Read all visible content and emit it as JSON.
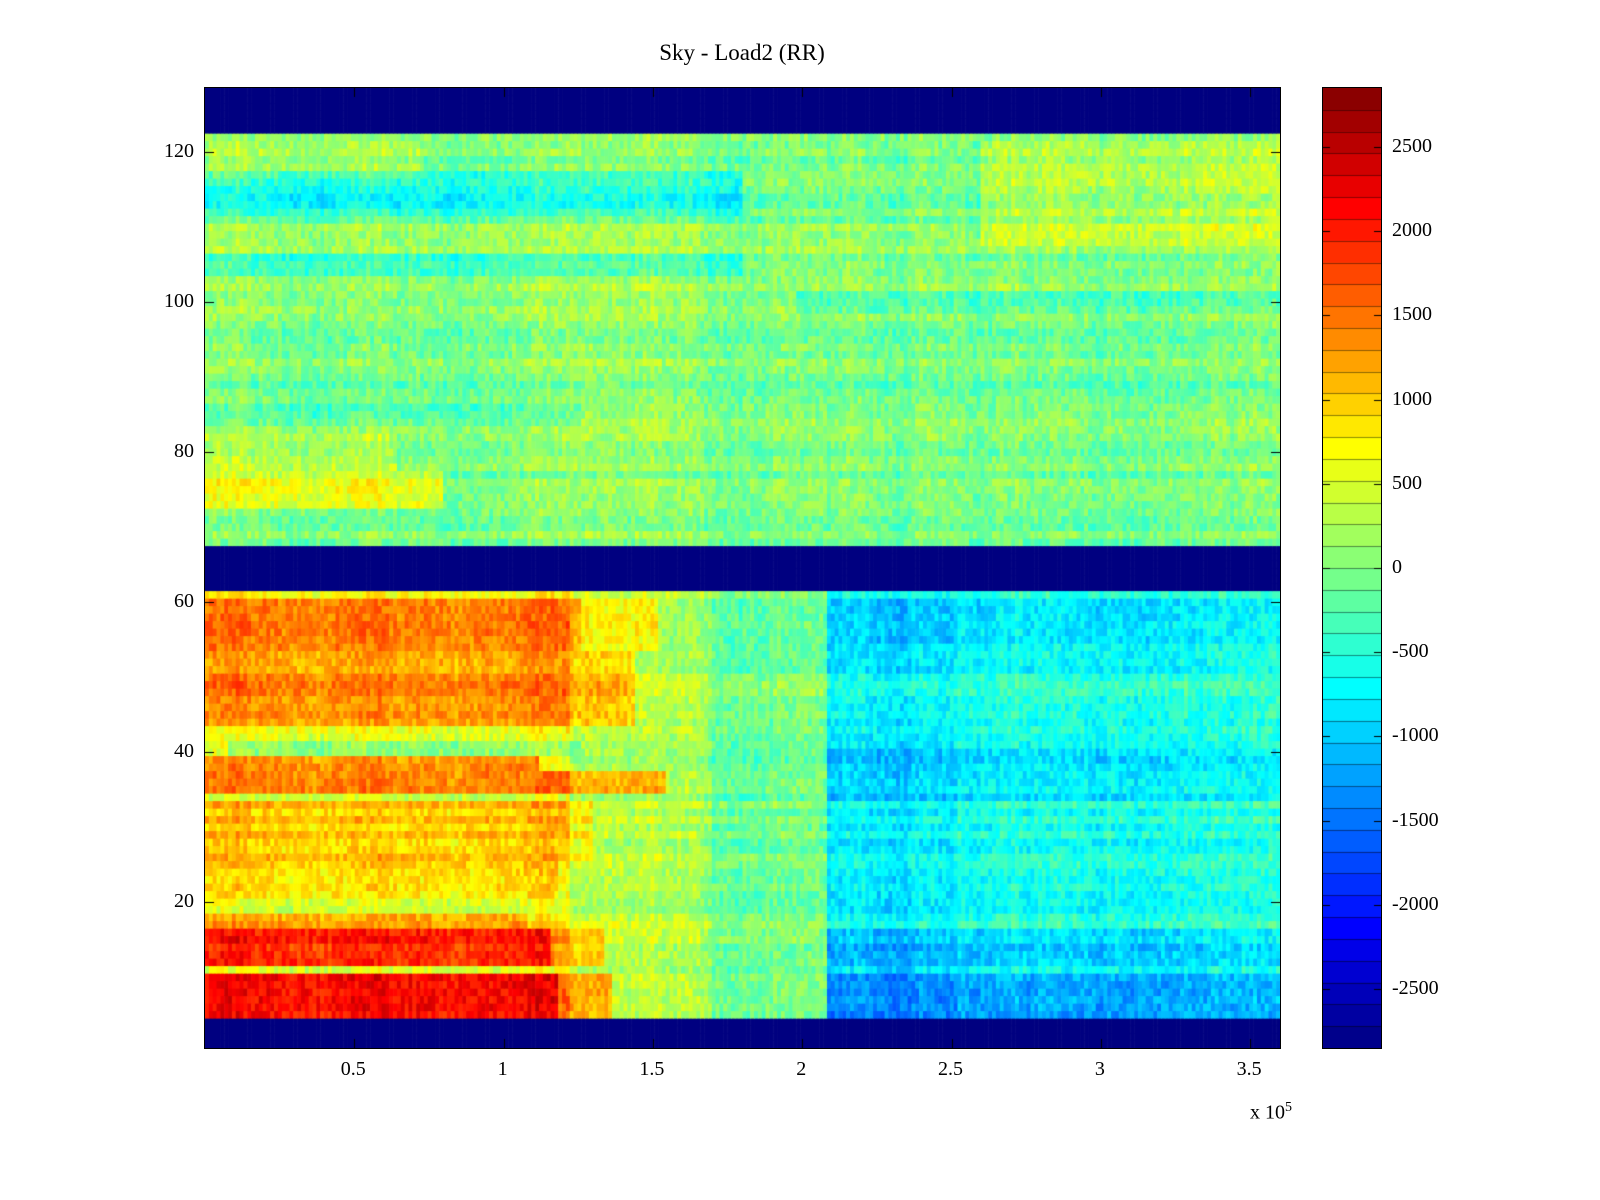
{
  "chart_data": {
    "type": "heatmap",
    "title": "Sky - Load2 (RR)",
    "colormap": "jet",
    "x_axis": {
      "min": 0,
      "max": 360000,
      "ticks": [
        {
          "value": 50000,
          "label": "0.5"
        },
        {
          "value": 100000,
          "label": "1"
        },
        {
          "value": 150000,
          "label": "1.5"
        },
        {
          "value": 200000,
          "label": "2"
        },
        {
          "value": 250000,
          "label": "2.5"
        },
        {
          "value": 300000,
          "label": "3"
        },
        {
          "value": 350000,
          "label": "3.5"
        }
      ],
      "exponent_label": {
        "mantissa": "x 10",
        "exp": "5"
      }
    },
    "y_axis": {
      "min": 0.5,
      "max": 128.5,
      "ticks": [
        {
          "value": 20,
          "label": "20"
        },
        {
          "value": 40,
          "label": "40"
        },
        {
          "value": 60,
          "label": "60"
        },
        {
          "value": 80,
          "label": "80"
        },
        {
          "value": 100,
          "label": "100"
        },
        {
          "value": 120,
          "label": "120"
        }
      ]
    },
    "colorbar": {
      "min": -2850,
      "max": 2850,
      "levels": 44,
      "ticks": [
        {
          "value": 2500,
          "label": "2500"
        },
        {
          "value": 2000,
          "label": "2000"
        },
        {
          "value": 1500,
          "label": "1500"
        },
        {
          "value": 1000,
          "label": "1000"
        },
        {
          "value": 500,
          "label": "500"
        },
        {
          "value": 0,
          "label": "0"
        },
        {
          "value": -500,
          "label": "-500"
        },
        {
          "value": -1000,
          "label": "-1000"
        },
        {
          "value": -1500,
          "label": "-1500"
        },
        {
          "value": -2000,
          "label": "-2000"
        },
        {
          "value": -2500,
          "label": "-2500"
        }
      ]
    },
    "grid": {
      "rows": 128,
      "cols": 280
    },
    "noise": {
      "seed": 1337,
      "base": 0,
      "cell_amp": 270,
      "row_amp": 200,
      "col_amp": 250
    },
    "regions": [
      {
        "name": "bottom-blank-band",
        "rows": [
          1,
          4
        ],
        "x": [
          0,
          1
        ],
        "solid": true,
        "value": -2850
      },
      {
        "name": "middle-blank-band",
        "rows": [
          62,
          67
        ],
        "x": [
          0,
          1
        ],
        "solid": true,
        "value": -2850
      },
      {
        "name": "top-blank-band",
        "rows": [
          123,
          128
        ],
        "x": [
          0,
          1
        ],
        "solid": true,
        "value": -2850
      },
      {
        "rows": [
          5,
          61
        ],
        "x": [
          0,
          0.34
        ],
        "dv": 650
      },
      {
        "rows": [
          5,
          61
        ],
        "x": [
          0.34,
          0.47
        ],
        "dv": 250
      },
      {
        "rows": [
          5,
          61
        ],
        "x": [
          0.58,
          1
        ],
        "dv": -480
      },
      {
        "rows": [
          5,
          61
        ],
        "x": [
          0.58,
          0.7
        ],
        "dv": -220
      },
      {
        "rows": [
          5,
          10
        ],
        "x": [
          0,
          0.33
        ],
        "dv": 1500
      },
      {
        "rows": [
          5,
          10
        ],
        "x": [
          0.33,
          0.38
        ],
        "dv": 800
      },
      {
        "rows": [
          12,
          16
        ],
        "x": [
          0,
          0.32
        ],
        "dv": 1350
      },
      {
        "rows": [
          12,
          16
        ],
        "x": [
          0.32,
          0.37
        ],
        "dv": 650
      },
      {
        "rows": [
          17,
          18
        ],
        "x": [
          0,
          0.3
        ],
        "dv": 500
      },
      {
        "rows": [
          21,
          25
        ],
        "x": [
          0,
          0.33
        ],
        "dv": 300
      },
      {
        "rows": [
          26,
          33
        ],
        "x": [
          0,
          0.36
        ],
        "dv": 420
      },
      {
        "rows": [
          35,
          37
        ],
        "x": [
          0,
          0.43
        ],
        "dv": 820
      },
      {
        "rows": [
          38,
          39
        ],
        "x": [
          0,
          0.31
        ],
        "dv": 850
      },
      {
        "rows": [
          40,
          41
        ],
        "x": [
          0.02,
          0.35
        ],
        "dv": -420
      },
      {
        "rows": [
          44,
          53
        ],
        "x": [
          0,
          0.4
        ],
        "dv": 700
      },
      {
        "rows": [
          54,
          60
        ],
        "x": [
          0,
          0.35
        ],
        "dv": 950
      },
      {
        "rows": [
          54,
          60
        ],
        "x": [
          0.35,
          0.42
        ],
        "dv": 500
      },
      {
        "rows": [
          5,
          10
        ],
        "x": [
          0.58,
          1
        ],
        "dv": -650
      },
      {
        "rows": [
          12,
          16
        ],
        "x": [
          0.58,
          1
        ],
        "dv": -380
      },
      {
        "rows": [
          34,
          40
        ],
        "x": [
          0.58,
          1
        ],
        "dv": -180
      },
      {
        "rows": [
          55,
          60
        ],
        "x": [
          0.58,
          1
        ],
        "dv": -160
      },
      {
        "rows": [
          73,
          77
        ],
        "x": [
          0,
          0.22
        ],
        "dv": 560
      },
      {
        "rows": [
          78,
          82
        ],
        "x": [
          0,
          0.18
        ],
        "dv": 260
      },
      {
        "rows": [
          84,
          86
        ],
        "x": [
          0,
          0.35
        ],
        "dv": -300
      },
      {
        "rows": [
          99,
          101
        ],
        "x": [
          0.55,
          1
        ],
        "dv": -300
      },
      {
        "rows": [
          100,
          102
        ],
        "x": [
          0,
          1
        ],
        "dv": 230
      },
      {
        "rows": [
          104,
          106
        ],
        "x": [
          0,
          0.5
        ],
        "dv": -350
      },
      {
        "rows": [
          107,
          110
        ],
        "x": [
          0,
          1
        ],
        "dv": 150
      },
      {
        "rows": [
          112,
          117
        ],
        "x": [
          0,
          0.5
        ],
        "dv": -520
      },
      {
        "rows": [
          108,
          121
        ],
        "x": [
          0.72,
          1
        ],
        "dv": 330
      },
      {
        "rows": [
          117,
          121
        ],
        "x": [
          0,
          0.2
        ],
        "dv": 250
      }
    ]
  }
}
